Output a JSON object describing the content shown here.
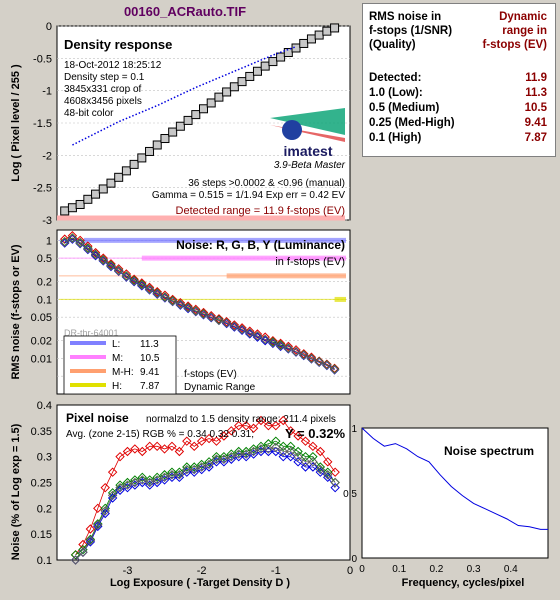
{
  "window": {
    "title": "00160_ACRauto.TIF"
  },
  "summary": {
    "header_left": [
      "RMS noise in",
      "f-stops (1/SNR)",
      "(Quality)"
    ],
    "header_right": [
      "Dynamic",
      "range in",
      "f-stops (EV)"
    ],
    "rows": [
      {
        "label": "Detected:",
        "value": "11.9"
      },
      {
        "label": "1.0   (Low):",
        "value": "11.3"
      },
      {
        "label": "0.5   (Medium)",
        "value": "10.5"
      },
      {
        "label": "0.25 (Med-High)",
        "value": "9.41"
      },
      {
        "label": "0.1   (High)",
        "value": "7.87"
      }
    ]
  },
  "density": {
    "title": "Density response",
    "info": [
      "18-Oct-2012 18:25:12",
      "Density step = 0.1",
      "3845x331 crop of",
      "4608x3456 pixels",
      "48-bit color"
    ],
    "logo": "imatest",
    "version": "3.9-Beta  Master",
    "stats": [
      "36 steps >0.0002 & <0.96 (manual)",
      "Gamma = 0.515 = 1/1.94   Exp err = 0.42 EV"
    ],
    "detected_range": "Detected range = 11.9 f-stops (EV)",
    "ylabel": "Log ( Pixel level / 255 )"
  },
  "noise": {
    "title": "Noise: R, G, B, Y (Luminance)",
    "subtitle": "in f-stops (EV)",
    "ylabel": "RMS noise (f-stops or EV)",
    "legend": [
      {
        "label": "L:",
        "value": "11.3"
      },
      {
        "label": "M:",
        "value": "10.5"
      },
      {
        "label": "M-H:",
        "value": "9.41"
      },
      {
        "label": "H:",
        "value": "7.87"
      }
    ],
    "legend_title": [
      "f-stops (EV)",
      "Dynamic Range"
    ],
    "hidden_label": "DR-thr-64001"
  },
  "pixel": {
    "title": "Pixel noise",
    "normline": "normalzd to 1.5 density range: 211.4 pixels",
    "avgline": "Avg. (zone 2-15) RGB % = 0.34  0.32  0.31;",
    "yline": "Y = 0.32%",
    "ylabel": "Noise (% of Log exp = 1.5)",
    "xlabel": "Log Exposure ( -Target Density D )"
  },
  "spectrum": {
    "title": "Noise spectrum",
    "xlabel": "Frequency, cycles/pixel"
  },
  "colors": {
    "red": "#e00000",
    "green": "#008000",
    "blue": "#0000e0",
    "gray": "#606060",
    "low": "#8080ff",
    "medium": "#ff80ff",
    "medhigh": "#ffa070",
    "high": "#e0e000",
    "darkred": "#8b0000",
    "title": "#600060"
  },
  "chart_data": [
    {
      "type": "line",
      "title": "Density response",
      "ylabel": "Log ( Pixel level / 255 )",
      "xlim": [
        -3.8,
        0
      ],
      "ylim": [
        -3,
        0
      ],
      "yticks": [
        0,
        -0.5,
        -1,
        -1.5,
        -2,
        -2.5,
        -3
      ],
      "series": [
        {
          "marker": "square",
          "x": [
            -3.7,
            -3.6,
            -3.5,
            -3.4,
            -3.3,
            -3.2,
            -3.1,
            -3.0,
            -2.9,
            -2.8,
            -2.7,
            -2.6,
            -2.5,
            -2.4,
            -2.3,
            -2.2,
            -2.1,
            -2.0,
            -1.9,
            -1.8,
            -1.7,
            -1.6,
            -1.5,
            -1.4,
            -1.3,
            -1.2,
            -1.1,
            -1.0,
            -0.9,
            -0.8,
            -0.7,
            -0.6,
            -0.5,
            -0.4,
            -0.3,
            -0.2
          ],
          "y": [
            -2.86,
            -2.81,
            -2.76,
            -2.68,
            -2.6,
            -2.52,
            -2.43,
            -2.34,
            -2.24,
            -2.14,
            -2.04,
            -1.94,
            -1.84,
            -1.74,
            -1.64,
            -1.55,
            -1.46,
            -1.37,
            -1.28,
            -1.19,
            -1.1,
            -1.02,
            -0.94,
            -0.86,
            -0.78,
            -0.7,
            -0.62,
            -0.55,
            -0.48,
            -0.41,
            -0.34,
            -0.27,
            -0.2,
            -0.14,
            -0.08,
            -0.03
          ]
        },
        {
          "marker": "dotted",
          "x": [
            -3.6,
            -3.0,
            -2.5,
            -2.0,
            -1.5,
            -1.0,
            -0.7
          ],
          "y": [
            -1.84,
            -1.48,
            -1.23,
            -0.95,
            -0.7,
            -0.45,
            -0.32
          ]
        }
      ]
    },
    {
      "type": "line",
      "title": "Noise: R, G, B, Y (Luminance)",
      "ylabel": "RMS noise (f-stops or EV)",
      "scale": "log",
      "ylim": [
        0.0025,
        1.5
      ],
      "yticks": [
        1,
        0.5,
        0.2,
        0.1,
        0.05,
        0.02,
        0.01
      ],
      "thresholds": [
        {
          "name": "L",
          "y": 1.0,
          "xmax": -3.45
        },
        {
          "name": "M",
          "y": 0.5,
          "xmax": -2.7
        },
        {
          "name": "M-H",
          "y": 0.25,
          "xmax": -1.6
        },
        {
          "name": "H",
          "y": 0.1,
          "xmax": -0.2
        }
      ],
      "series": [
        {
          "name": "R",
          "x": [
            -3.7,
            -3.6,
            -3.5,
            -3.4,
            -3.3,
            -3.2,
            -3.1,
            -3.0,
            -2.9,
            -2.8,
            -2.7,
            -2.6,
            -2.5,
            -2.4,
            -2.3,
            -2.2,
            -2.1,
            -2.0,
            -1.9,
            -1.8,
            -1.7,
            -1.6,
            -1.5,
            -1.4,
            -1.3,
            -1.2,
            -1.1,
            -1.0,
            -0.9,
            -0.8,
            -0.7,
            -0.6,
            -0.5,
            -0.4,
            -0.3,
            -0.2
          ],
          "y": [
            1.05,
            1.2,
            1.0,
            0.8,
            0.62,
            0.5,
            0.4,
            0.33,
            0.27,
            0.22,
            0.19,
            0.16,
            0.135,
            0.118,
            0.1,
            0.088,
            0.077,
            0.068,
            0.06,
            0.053,
            0.047,
            0.042,
            0.037,
            0.033,
            0.029,
            0.026,
            0.023,
            0.02,
            0.018,
            0.016,
            0.014,
            0.012,
            0.0105,
            0.009,
            0.008,
            0.0068
          ]
        },
        {
          "name": "G",
          "x": [
            -3.7,
            -3.6,
            -3.5,
            -3.4,
            -3.3,
            -3.2,
            -3.1,
            -3.0,
            -2.9,
            -2.8,
            -2.7,
            -2.6,
            -2.5,
            -2.4,
            -2.3,
            -2.2,
            -2.1,
            -2.0,
            -1.9,
            -1.8,
            -1.7,
            -1.6,
            -1.5,
            -1.4,
            -1.3,
            -1.2,
            -1.1,
            -1.0,
            -0.9,
            -0.8,
            -0.7,
            -0.6,
            -0.5,
            -0.4,
            -0.3,
            -0.2
          ],
          "y": [
            0.95,
            1.1,
            0.92,
            0.74,
            0.58,
            0.47,
            0.38,
            0.31,
            0.25,
            0.21,
            0.18,
            0.15,
            0.128,
            0.11,
            0.095,
            0.083,
            0.073,
            0.064,
            0.057,
            0.05,
            0.045,
            0.04,
            0.035,
            0.031,
            0.027,
            0.024,
            0.021,
            0.019,
            0.017,
            0.015,
            0.013,
            0.0115,
            0.01,
            0.0088,
            0.0078,
            0.0066
          ]
        },
        {
          "name": "B",
          "x": [
            -3.7,
            -3.6,
            -3.5,
            -3.4,
            -3.3,
            -3.2,
            -3.1,
            -3.0,
            -2.9,
            -2.8,
            -2.7,
            -2.6,
            -2.5,
            -2.4,
            -2.3,
            -2.2,
            -2.1,
            -2.0,
            -1.9,
            -1.8,
            -1.7,
            -1.6,
            -1.5,
            -1.4,
            -1.3,
            -1.2,
            -1.1,
            -1.0,
            -0.9,
            -0.8,
            -0.7,
            -0.6,
            -0.5,
            -0.4,
            -0.3,
            -0.2
          ],
          "y": [
            0.9,
            1.05,
            0.88,
            0.7,
            0.55,
            0.45,
            0.36,
            0.3,
            0.24,
            0.2,
            0.17,
            0.145,
            0.123,
            0.106,
            0.092,
            0.08,
            0.07,
            0.062,
            0.055,
            0.049,
            0.044,
            0.039,
            0.034,
            0.03,
            0.026,
            0.023,
            0.02,
            0.018,
            0.016,
            0.0145,
            0.0128,
            0.0112,
            0.0098,
            0.0086,
            0.0076,
            0.0064
          ]
        },
        {
          "name": "Y",
          "x": [
            -3.7,
            -3.6,
            -3.5,
            -3.4,
            -3.3,
            -3.2,
            -3.1,
            -3.0,
            -2.9,
            -2.8,
            -2.7,
            -2.6,
            -2.5,
            -2.4,
            -2.3,
            -2.2,
            -2.1,
            -2.0,
            -1.9,
            -1.8,
            -1.7,
            -1.6,
            -1.5,
            -1.4,
            -1.3,
            -1.2,
            -1.1,
            -1.0,
            -0.9,
            -0.8,
            -0.7,
            -0.6,
            -0.5,
            -0.4,
            -0.3,
            -0.2
          ],
          "y": [
            0.93,
            1.08,
            0.9,
            0.72,
            0.57,
            0.46,
            0.37,
            0.305,
            0.245,
            0.205,
            0.175,
            0.148,
            0.126,
            0.108,
            0.093,
            0.082,
            0.072,
            0.063,
            0.056,
            0.05,
            0.044,
            0.04,
            0.035,
            0.031,
            0.027,
            0.024,
            0.021,
            0.0185,
            0.0165,
            0.0148,
            0.013,
            0.0114,
            0.0099,
            0.0087,
            0.0077,
            0.0065
          ]
        }
      ]
    },
    {
      "type": "line",
      "title": "Pixel noise",
      "xlabel": "Log Exposure ( -Target Density D )",
      "ylabel": "Noise (% of Log exp = 1.5)",
      "xlim": [
        -3.95,
        0
      ],
      "ylim": [
        0.1,
        0.4
      ],
      "xticks": [
        -3,
        -2,
        -1,
        0
      ],
      "yticks": [
        0.4,
        0.35,
        0.3,
        0.25,
        0.2,
        0.15,
        0.1
      ],
      "series": [
        {
          "name": "R",
          "x": [
            -3.7,
            -3.6,
            -3.5,
            -3.4,
            -3.3,
            -3.2,
            -3.1,
            -3.0,
            -2.9,
            -2.8,
            -2.7,
            -2.6,
            -2.5,
            -2.4,
            -2.3,
            -2.2,
            -2.1,
            -2.0,
            -1.9,
            -1.8,
            -1.7,
            -1.6,
            -1.5,
            -1.4,
            -1.3,
            -1.2,
            -1.1,
            -1.0,
            -0.9,
            -0.8,
            -0.7,
            -0.6,
            -0.5,
            -0.4,
            -0.3,
            -0.2
          ],
          "y": [
            0.11,
            0.13,
            0.16,
            0.2,
            0.24,
            0.27,
            0.3,
            0.31,
            0.315,
            0.31,
            0.32,
            0.32,
            0.315,
            0.32,
            0.31,
            0.33,
            0.32,
            0.33,
            0.335,
            0.33,
            0.34,
            0.35,
            0.36,
            0.36,
            0.355,
            0.37,
            0.36,
            0.36,
            0.37,
            0.35,
            0.34,
            0.33,
            0.32,
            0.31,
            0.29,
            0.27
          ]
        },
        {
          "name": "G",
          "x": [
            -3.7,
            -3.6,
            -3.5,
            -3.4,
            -3.3,
            -3.2,
            -3.1,
            -3.0,
            -2.9,
            -2.8,
            -2.7,
            -2.6,
            -2.5,
            -2.4,
            -2.3,
            -2.2,
            -2.1,
            -2.0,
            -1.9,
            -1.8,
            -1.7,
            -1.6,
            -1.5,
            -1.4,
            -1.3,
            -1.2,
            -1.1,
            -1.0,
            -0.9,
            -0.8,
            -0.7,
            -0.6,
            -0.5,
            -0.4,
            -0.3,
            -0.2
          ],
          "y": [
            0.11,
            0.12,
            0.14,
            0.17,
            0.2,
            0.23,
            0.245,
            0.25,
            0.255,
            0.26,
            0.255,
            0.26,
            0.265,
            0.27,
            0.27,
            0.28,
            0.28,
            0.285,
            0.29,
            0.3,
            0.3,
            0.305,
            0.31,
            0.31,
            0.315,
            0.32,
            0.325,
            0.33,
            0.32,
            0.32,
            0.31,
            0.3,
            0.3,
            0.28,
            0.27,
            0.25
          ]
        },
        {
          "name": "B",
          "x": [
            -3.7,
            -3.6,
            -3.5,
            -3.4,
            -3.3,
            -3.2,
            -3.1,
            -3.0,
            -2.9,
            -2.8,
            -2.7,
            -2.6,
            -2.5,
            -2.4,
            -2.3,
            -2.2,
            -2.1,
            -2.0,
            -1.9,
            -1.8,
            -1.7,
            -1.6,
            -1.5,
            -1.4,
            -1.3,
            -1.2,
            -1.1,
            -1.0,
            -0.9,
            -0.8,
            -0.7,
            -0.6,
            -0.5,
            -0.4,
            -0.3,
            -0.2
          ],
          "y": [
            0.1,
            0.115,
            0.135,
            0.165,
            0.19,
            0.22,
            0.235,
            0.24,
            0.245,
            0.25,
            0.245,
            0.25,
            0.255,
            0.26,
            0.26,
            0.27,
            0.27,
            0.275,
            0.28,
            0.29,
            0.29,
            0.295,
            0.3,
            0.3,
            0.305,
            0.31,
            0.31,
            0.31,
            0.3,
            0.3,
            0.29,
            0.28,
            0.28,
            0.27,
            0.26,
            0.24
          ]
        },
        {
          "name": "Y",
          "x": [
            -3.7,
            -3.6,
            -3.5,
            -3.4,
            -3.3,
            -3.2,
            -3.1,
            -3.0,
            -2.9,
            -2.8,
            -2.7,
            -2.6,
            -2.5,
            -2.4,
            -2.3,
            -2.2,
            -2.1,
            -2.0,
            -1.9,
            -1.8,
            -1.7,
            -1.6,
            -1.5,
            -1.4,
            -1.3,
            -1.2,
            -1.1,
            -1.0,
            -0.9,
            -0.8,
            -0.7,
            -0.6,
            -0.5,
            -0.4,
            -0.3,
            -0.2
          ],
          "y": [
            0.1,
            0.115,
            0.138,
            0.168,
            0.195,
            0.225,
            0.24,
            0.245,
            0.25,
            0.255,
            0.25,
            0.255,
            0.26,
            0.265,
            0.265,
            0.275,
            0.275,
            0.28,
            0.285,
            0.295,
            0.295,
            0.3,
            0.305,
            0.305,
            0.31,
            0.315,
            0.315,
            0.318,
            0.31,
            0.31,
            0.3,
            0.29,
            0.29,
            0.275,
            0.265,
            0.25
          ]
        }
      ]
    },
    {
      "type": "line",
      "title": "Noise spectrum",
      "xlabel": "Frequency, cycles/pixel",
      "xlim": [
        0,
        0.5
      ],
      "ylim": [
        0,
        1
      ],
      "xticks": [
        0,
        0.1,
        0.2,
        0.3,
        0.4
      ],
      "yticks": [
        1,
        0.5,
        0
      ],
      "series": [
        {
          "x": [
            0.0,
            0.03,
            0.06,
            0.09,
            0.12,
            0.15,
            0.18,
            0.21,
            0.24,
            0.27,
            0.3,
            0.33,
            0.36,
            0.39,
            0.42,
            0.45,
            0.48,
            0.5
          ],
          "y": [
            1.0,
            0.92,
            0.86,
            0.88,
            0.84,
            0.78,
            0.74,
            0.64,
            0.55,
            0.48,
            0.42,
            0.38,
            0.34,
            0.3,
            0.25,
            0.24,
            0.22,
            0.22
          ]
        }
      ]
    }
  ]
}
